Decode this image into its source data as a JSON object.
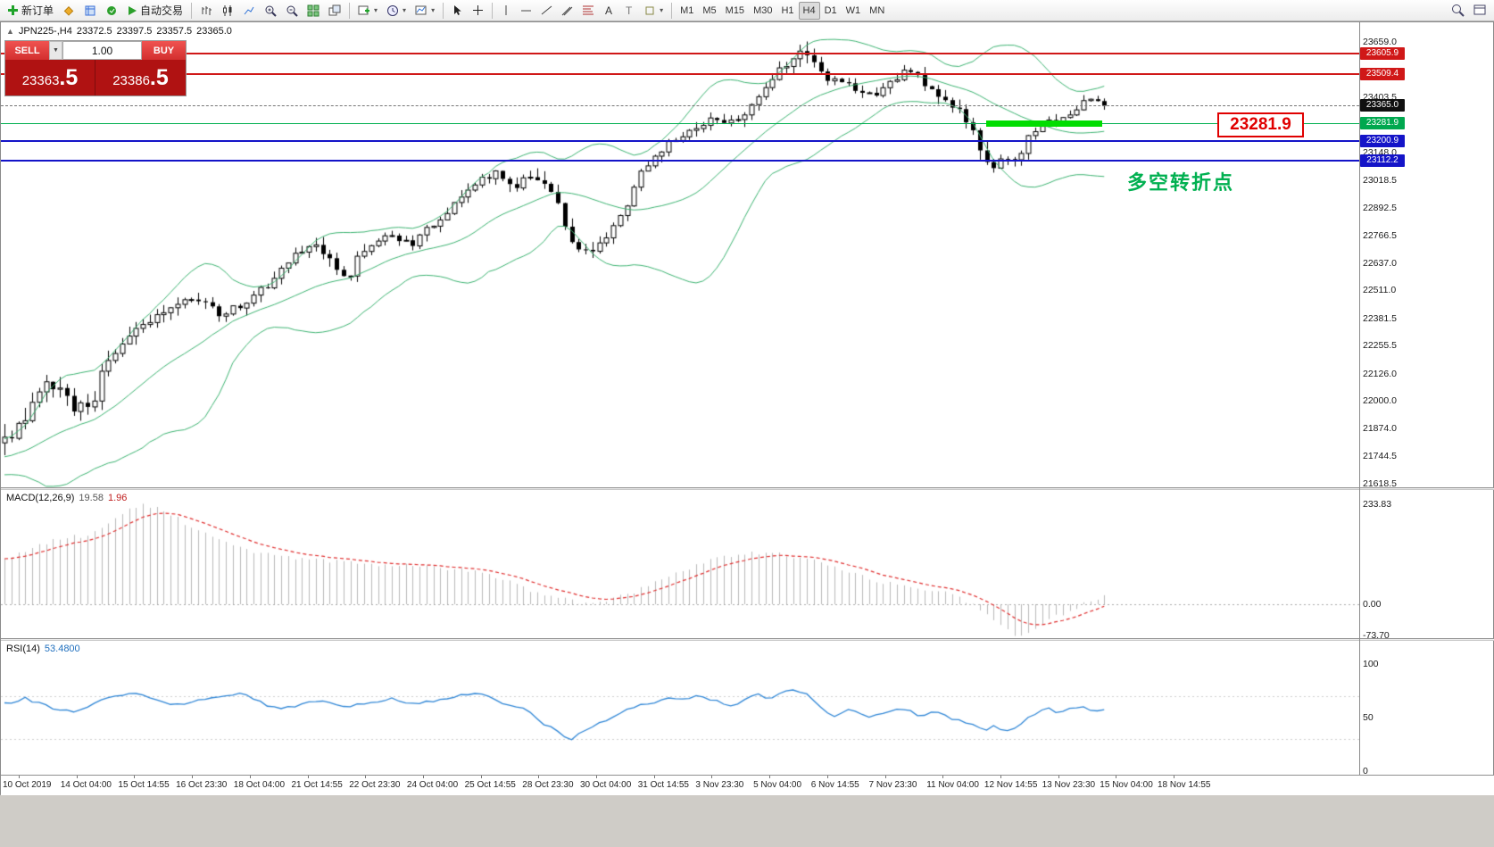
{
  "toolbar": {
    "new_order_label": "新订单",
    "auto_trading_label": "自动交易",
    "timeframes": [
      "M1",
      "M5",
      "M15",
      "M30",
      "H1",
      "H4",
      "D1",
      "W1",
      "MN"
    ],
    "active_timeframe": "H4"
  },
  "chart": {
    "header": {
      "symbol": "JPN225-,H4",
      "open": "23372.5",
      "high": "23397.5",
      "low": "23357.5",
      "close": "23365.0"
    },
    "one_click": {
      "sell_label": "SELL",
      "buy_label": "BUY",
      "volume": "1.00",
      "sell_price": {
        "main": "23363",
        "big": ".5"
      },
      "buy_price": {
        "main": "23386",
        "big": ".5"
      }
    },
    "price_label_box": "23281.9",
    "annotation": "多空转折点",
    "macd_label": "MACD(12,26,9)",
    "macd_value_main": "19.58",
    "macd_value_signal": "1.96",
    "rsi_label": "RSI(14)",
    "rsi_value": "53.4800"
  },
  "chart_data": {
    "type": "candlestick",
    "symbol": "JPN225-",
    "timeframe": "H4",
    "ohlc": {
      "open": 23372.5,
      "high": 23397.5,
      "low": 23357.5,
      "close": 23365.0
    },
    "y_axis": {
      "top_price": 23659.0,
      "bottom_price": 21618.5,
      "plain_ticks": [
        23659.0,
        23403.5,
        23148.0,
        23018.5,
        22892.5,
        22766.5,
        22637.0,
        22511.0,
        22381.5,
        22255.5,
        22126.0,
        22000.0,
        21874.0,
        21744.5,
        21618.5
      ]
    },
    "y_tags": [
      {
        "price": 23605.9,
        "label": "23605.9",
        "bg": "#d01818"
      },
      {
        "price": 23509.4,
        "label": "23509.4",
        "bg": "#d01818"
      },
      {
        "price": 23365.0,
        "label": "23365.0",
        "bg": "#101010"
      },
      {
        "price": 23281.9,
        "label": "23281.9",
        "bg": "#00a84f"
      },
      {
        "price": 23200.9,
        "label": "23200.9",
        "bg": "#1414c8"
      },
      {
        "price": 23112.2,
        "label": "23112.2",
        "bg": "#1414c8"
      }
    ],
    "price_lines": [
      {
        "price": 23605.9,
        "color": "#d01818",
        "width": 2,
        "style": "solid",
        "name": "resistance-line-1"
      },
      {
        "price": 23509.4,
        "color": "#d01818",
        "width": 2,
        "style": "solid",
        "name": "resistance-line-2"
      },
      {
        "price": 23365.0,
        "color": "#777777",
        "width": 1,
        "style": "dashed",
        "name": "current-price-line"
      },
      {
        "price": 23281.9,
        "color": "#00b050",
        "width": 1,
        "style": "solid",
        "name": "pivot-line"
      },
      {
        "price": 23200.9,
        "color": "#1414c8",
        "width": 2,
        "style": "solid",
        "name": "support-line-1"
      },
      {
        "price": 23112.2,
        "color": "#1414c8",
        "width": 2,
        "style": "solid",
        "name": "support-line-2"
      }
    ],
    "highlight_segment": {
      "price": 23281.9,
      "x0": 0.893,
      "x1": 0.998,
      "color": "#00dd00"
    },
    "bollinger": {
      "period": 20,
      "deviation": 2,
      "color": "#3cb371"
    },
    "price_path": [
      [
        0,
        21800
      ],
      [
        0.02,
        21950
      ],
      [
        0.035,
        22100
      ],
      [
        0.05,
        22060
      ],
      [
        0.065,
        21960
      ],
      [
        0.08,
        22000
      ],
      [
        0.09,
        22150
      ],
      [
        0.115,
        22330
      ],
      [
        0.13,
        22370
      ],
      [
        0.15,
        22440
      ],
      [
        0.175,
        22470
      ],
      [
        0.195,
        22410
      ],
      [
        0.215,
        22430
      ],
      [
        0.24,
        22540
      ],
      [
        0.265,
        22670
      ],
      [
        0.285,
        22710
      ],
      [
        0.3,
        22640
      ],
      [
        0.31,
        22560
      ],
      [
        0.325,
        22690
      ],
      [
        0.35,
        22770
      ],
      [
        0.37,
        22730
      ],
      [
        0.39,
        22820
      ],
      [
        0.41,
        22920
      ],
      [
        0.43,
        23010
      ],
      [
        0.45,
        23050
      ],
      [
        0.465,
        23000
      ],
      [
        0.48,
        23060
      ],
      [
        0.5,
        22940
      ],
      [
        0.52,
        22700
      ],
      [
        0.53,
        22680
      ],
      [
        0.545,
        22760
      ],
      [
        0.56,
        22850
      ],
      [
        0.58,
        23060
      ],
      [
        0.6,
        23170
      ],
      [
        0.62,
        23240
      ],
      [
        0.645,
        23310
      ],
      [
        0.66,
        23280
      ],
      [
        0.675,
        23340
      ],
      [
        0.695,
        23470
      ],
      [
        0.715,
        23580
      ],
      [
        0.725,
        23620
      ],
      [
        0.735,
        23570
      ],
      [
        0.75,
        23480
      ],
      [
        0.765,
        23470
      ],
      [
        0.78,
        23410
      ],
      [
        0.8,
        23440
      ],
      [
        0.82,
        23530
      ],
      [
        0.835,
        23480
      ],
      [
        0.85,
        23420
      ],
      [
        0.865,
        23360
      ],
      [
        0.878,
        23290
      ],
      [
        0.887,
        23140
      ],
      [
        0.9,
        23090
      ],
      [
        0.91,
        23130
      ],
      [
        0.92,
        23100
      ],
      [
        0.93,
        23210
      ],
      [
        0.94,
        23260
      ],
      [
        0.955,
        23300
      ],
      [
        0.97,
        23330
      ],
      [
        0.985,
        23410
      ],
      [
        1,
        23365
      ]
    ],
    "volatility_path": [
      [
        0,
        130
      ],
      [
        0.1,
        90
      ],
      [
        0.2,
        70
      ],
      [
        0.3,
        80
      ],
      [
        0.4,
        60
      ],
      [
        0.5,
        90
      ],
      [
        0.55,
        70
      ],
      [
        0.6,
        60
      ],
      [
        0.7,
        80
      ],
      [
        0.73,
        90
      ],
      [
        0.8,
        60
      ],
      [
        0.89,
        90
      ],
      [
        0.93,
        60
      ],
      [
        1,
        55
      ]
    ],
    "x_labels": [
      "10 Oct 2019",
      "14 Oct 04:00",
      "15 Oct 14:55",
      "16 Oct 23:30",
      "18 Oct 04:00",
      "21 Oct 14:55",
      "22 Oct 23:30",
      "24 Oct 04:00",
      "25 Oct 14:55",
      "28 Oct 23:30",
      "30 Oct 04:00",
      "31 Oct 14:55",
      "3 Nov 23:30",
      "5 Nov 04:00",
      "6 Nov 14:55",
      "7 Nov 23:30",
      "11 Nov 04:00",
      "12 Nov 14:55",
      "13 Nov 23:30",
      "15 Nov 04:00",
      "18 Nov 14:55"
    ],
    "macd": {
      "ticks": [
        233.83,
        0.0,
        -73.7
      ],
      "hist": [
        [
          0,
          105
        ],
        [
          0.02,
          125
        ],
        [
          0.045,
          150
        ],
        [
          0.07,
          160
        ],
        [
          0.09,
          175
        ],
        [
          0.11,
          220
        ],
        [
          0.125,
          233
        ],
        [
          0.14,
          225
        ],
        [
          0.16,
          195
        ],
        [
          0.18,
          165
        ],
        [
          0.2,
          145
        ],
        [
          0.23,
          120
        ],
        [
          0.26,
          108
        ],
        [
          0.3,
          100
        ],
        [
          0.34,
          92
        ],
        [
          0.38,
          88
        ],
        [
          0.42,
          80
        ],
        [
          0.45,
          60
        ],
        [
          0.475,
          35
        ],
        [
          0.5,
          15
        ],
        [
          0.52,
          5
        ],
        [
          0.545,
          8
        ],
        [
          0.57,
          25
        ],
        [
          0.6,
          60
        ],
        [
          0.63,
          92
        ],
        [
          0.655,
          112
        ],
        [
          0.68,
          120
        ],
        [
          0.7,
          118
        ],
        [
          0.73,
          105
        ],
        [
          0.76,
          80
        ],
        [
          0.79,
          55
        ],
        [
          0.82,
          42
        ],
        [
          0.85,
          30
        ],
        [
          0.87,
          12
        ],
        [
          0.885,
          -10
        ],
        [
          0.9,
          -40
        ],
        [
          0.915,
          -68
        ],
        [
          0.925,
          -74
        ],
        [
          0.94,
          -55
        ],
        [
          0.955,
          -30
        ],
        [
          0.97,
          -12
        ],
        [
          0.985,
          5
        ],
        [
          1,
          18
        ]
      ]
    },
    "rsi": {
      "ticks": [
        100,
        50,
        0
      ],
      "levels": [
        70,
        30
      ],
      "line": [
        [
          0,
          63
        ],
        [
          0.02,
          68
        ],
        [
          0.04,
          60
        ],
        [
          0.06,
          55
        ],
        [
          0.08,
          62
        ],
        [
          0.1,
          70
        ],
        [
          0.12,
          72
        ],
        [
          0.14,
          65
        ],
        [
          0.16,
          62
        ],
        [
          0.18,
          66
        ],
        [
          0.2,
          70
        ],
        [
          0.215,
          73
        ],
        [
          0.23,
          65
        ],
        [
          0.25,
          58
        ],
        [
          0.27,
          62
        ],
        [
          0.29,
          67
        ],
        [
          0.31,
          60
        ],
        [
          0.33,
          64
        ],
        [
          0.35,
          68
        ],
        [
          0.37,
          63
        ],
        [
          0.39,
          66
        ],
        [
          0.41,
          70
        ],
        [
          0.43,
          72
        ],
        [
          0.45,
          65
        ],
        [
          0.47,
          60
        ],
        [
          0.485,
          48
        ],
        [
          0.5,
          38
        ],
        [
          0.515,
          30
        ],
        [
          0.53,
          40
        ],
        [
          0.55,
          48
        ],
        [
          0.57,
          60
        ],
        [
          0.59,
          65
        ],
        [
          0.61,
          68
        ],
        [
          0.63,
          70
        ],
        [
          0.65,
          66
        ],
        [
          0.66,
          60
        ],
        [
          0.67,
          65
        ],
        [
          0.68,
          72
        ],
        [
          0.7,
          68
        ],
        [
          0.715,
          78
        ],
        [
          0.73,
          72
        ],
        [
          0.74,
          60
        ],
        [
          0.755,
          52
        ],
        [
          0.77,
          58
        ],
        [
          0.785,
          50
        ],
        [
          0.8,
          55
        ],
        [
          0.815,
          60
        ],
        [
          0.83,
          52
        ],
        [
          0.845,
          55
        ],
        [
          0.86,
          50
        ],
        [
          0.875,
          45
        ],
        [
          0.89,
          38
        ],
        [
          0.9,
          42
        ],
        [
          0.91,
          36
        ],
        [
          0.92,
          40
        ],
        [
          0.93,
          50
        ],
        [
          0.94,
          55
        ],
        [
          0.95,
          58
        ],
        [
          0.96,
          54
        ],
        [
          0.97,
          58
        ],
        [
          0.98,
          60
        ],
        [
          0.99,
          56
        ],
        [
          1,
          57
        ]
      ]
    }
  }
}
